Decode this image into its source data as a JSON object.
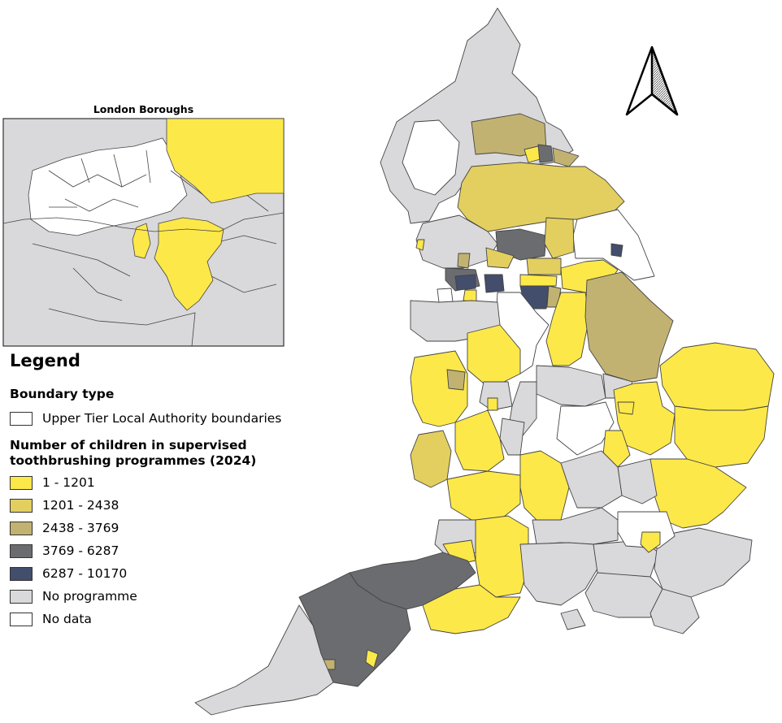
{
  "inset": {
    "title": "London Boroughs"
  },
  "legend": {
    "title": "Legend",
    "boundary_section": {
      "title": "Boundary type",
      "item": {
        "label": "Upper Tier Local Authority boundaries",
        "color": "#ffffff"
      }
    },
    "programme_section": {
      "title_line1": "Number of children in supervised",
      "title_line2": "toothbrushing programmes (2024)",
      "items": [
        {
          "label": "1 - 1201",
          "color": "#fde84a"
        },
        {
          "label": "1201 - 2438",
          "color": "#e3cf5f"
        },
        {
          "label": "2438 - 3769",
          "color": "#c2b272"
        },
        {
          "label": "3769 - 6287",
          "color": "#6b6c70"
        },
        {
          "label": "6287 - 10170",
          "color": "#434e6c"
        },
        {
          "label": "No programme",
          "color": "#d9d8da"
        },
        {
          "label": "No data",
          "color": "#ffffff"
        }
      ]
    }
  },
  "icons": {
    "north_arrow": "north-arrow-icon"
  },
  "colors": {
    "border": "#333333",
    "background": "#ffffff"
  }
}
